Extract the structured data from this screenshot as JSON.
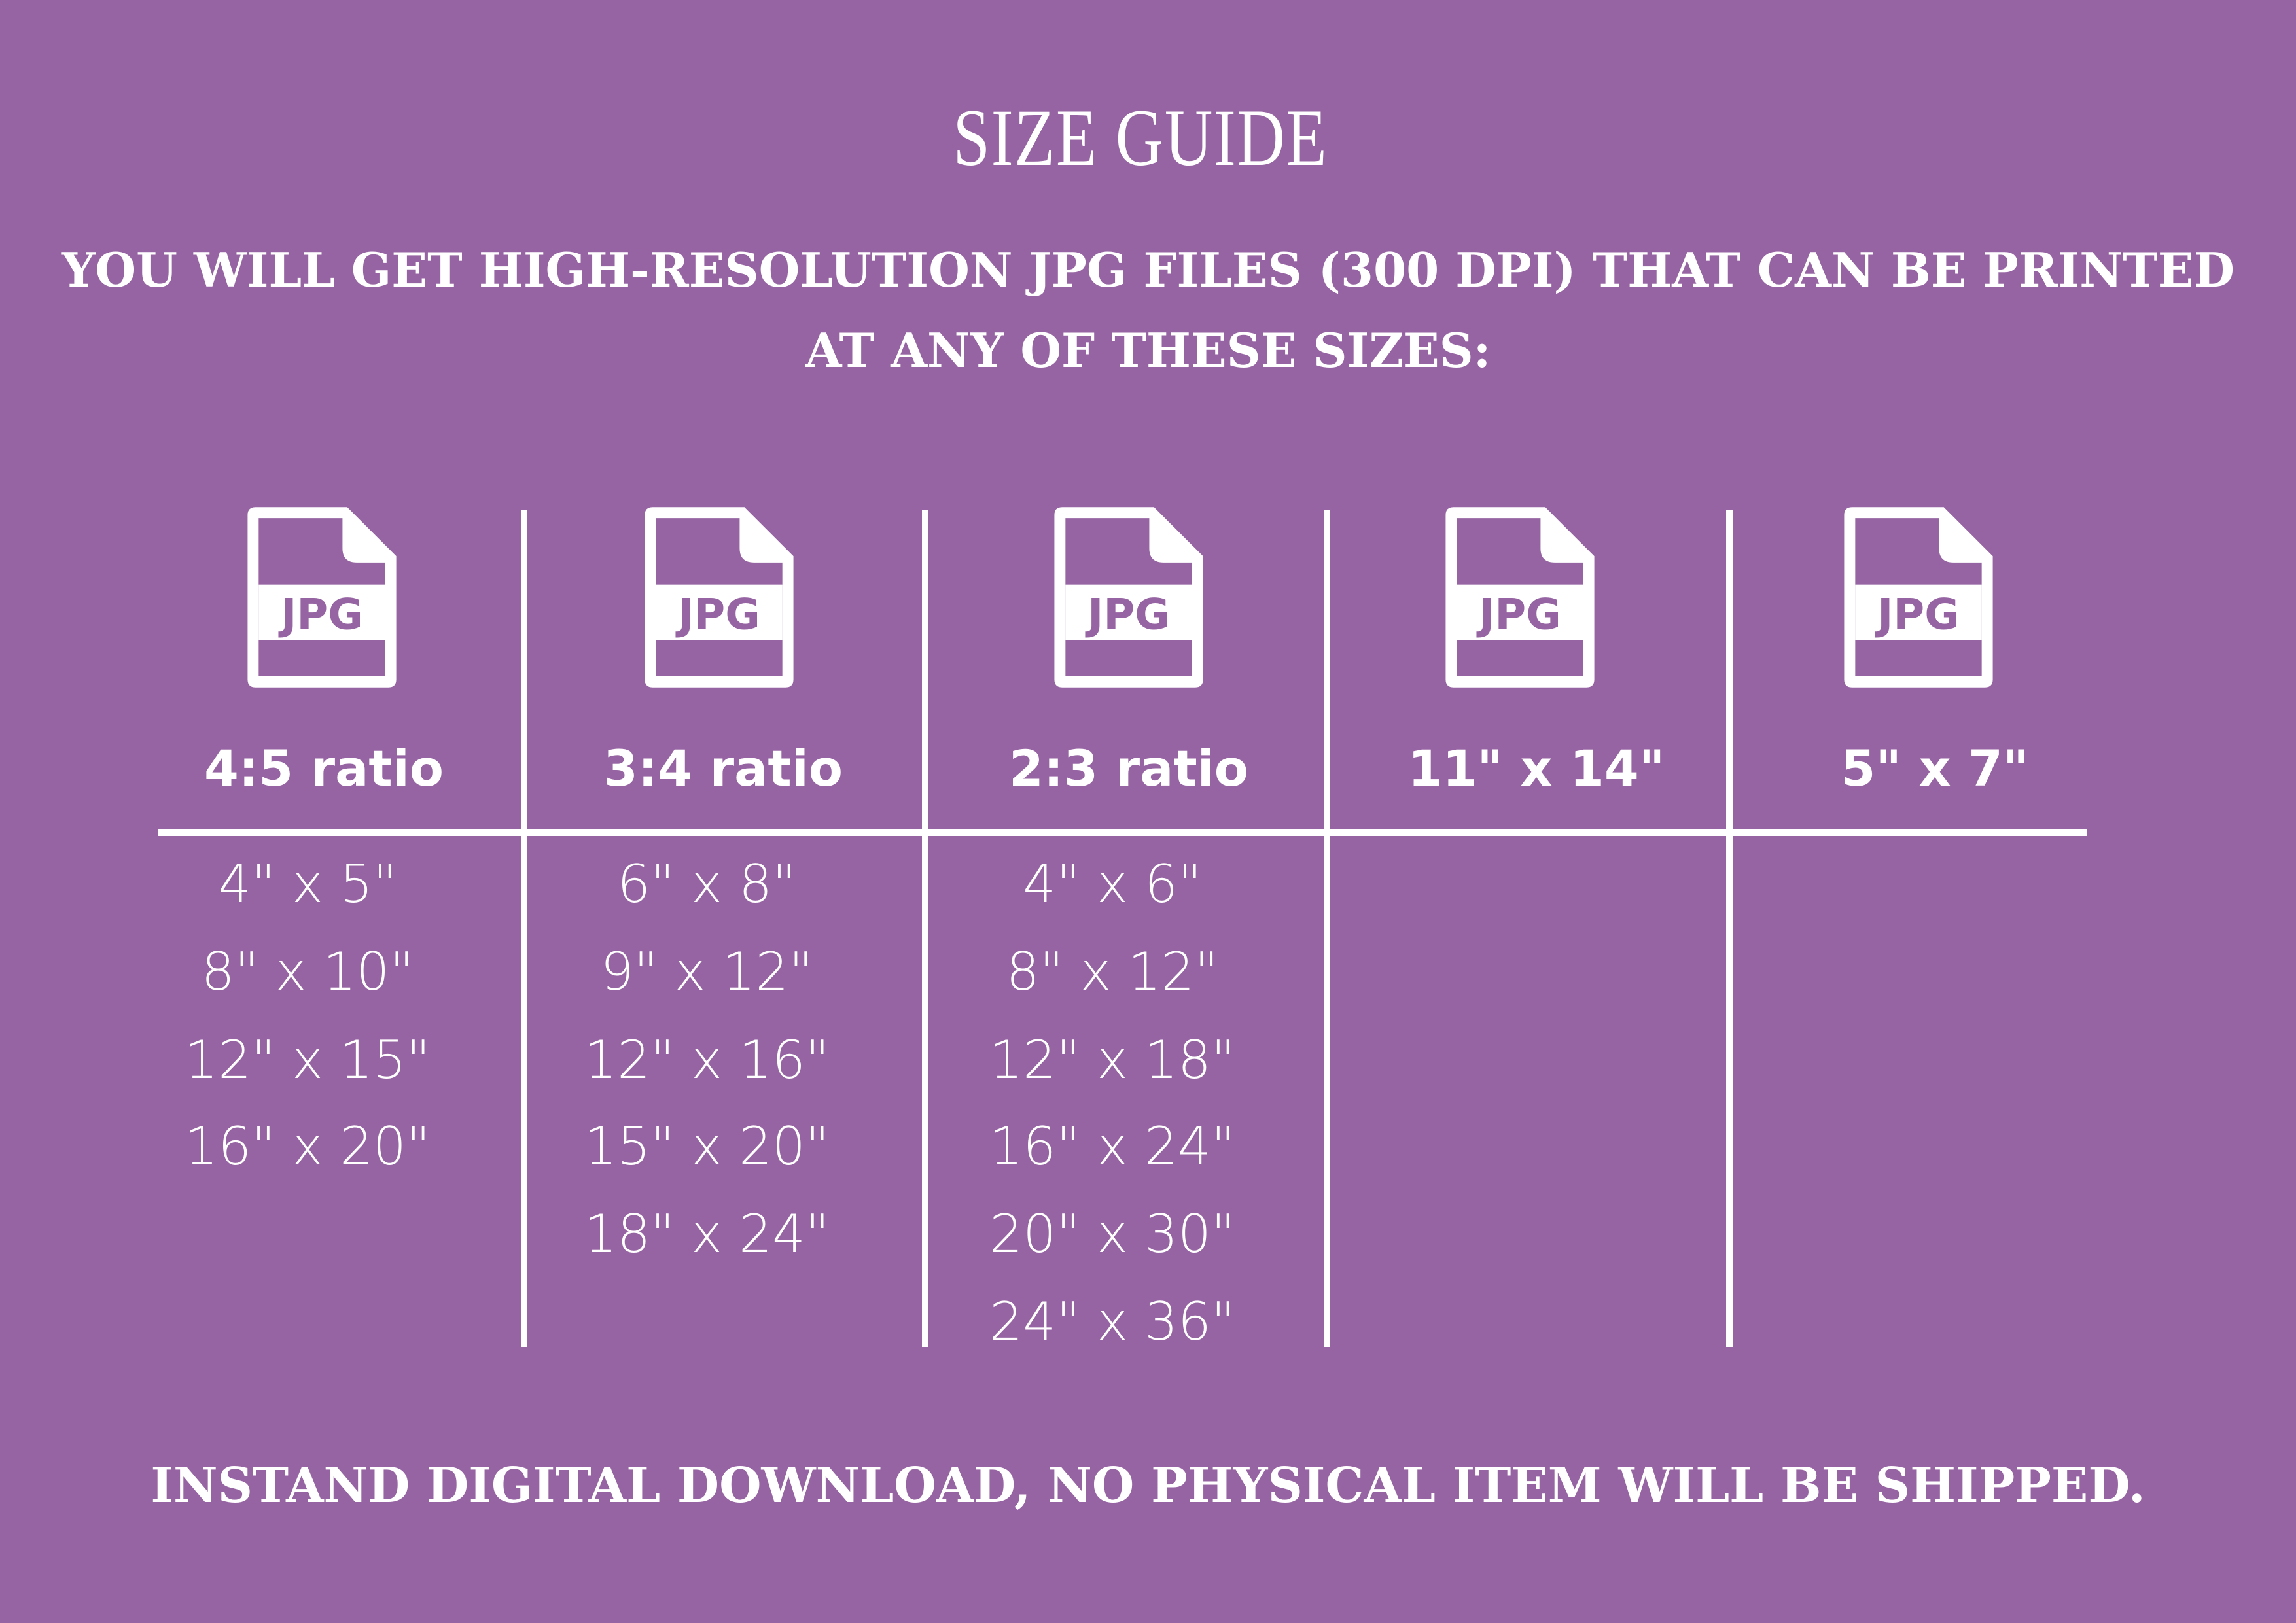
{
  "background_color": "#9664a2",
  "title": "SIZE GUIDE",
  "subtitle_lines": [
    "YOU WILL GET HIGH-RESOLUTION JPG FILES (300 DPI) THAT CAN BE PRINTED",
    "AT ANY OF THESE SIZES:"
  ],
  "columns": [
    {
      "icon": "jpg-file-icon",
      "icon_label": "JPG",
      "header": "4:5 ratio",
      "sizes": [
        "4\" x 5\"",
        "8\" x 10\"",
        "12\" x 15\"",
        "16\" x 20\""
      ]
    },
    {
      "icon": "jpg-file-icon",
      "icon_label": "JPG",
      "header": "3:4 ratio",
      "sizes": [
        "6\" x 8\"",
        "9\" x 12\"",
        "12\" x 16\"",
        "15\" x 20\"",
        "18\" x 24\""
      ]
    },
    {
      "icon": "jpg-file-icon",
      "icon_label": "JPG",
      "header": "2:3 ratio",
      "sizes": [
        "4\" x 6\"",
        "8\" x 12\"",
        "12\" x 18\"",
        "16\" x 24\"",
        "20\" x 30\"",
        "24\" x 36\""
      ]
    },
    {
      "icon": "jpg-file-icon",
      "icon_label": "JPG",
      "header": "11\" x 14\"",
      "sizes": []
    },
    {
      "icon": "jpg-file-icon",
      "icon_label": "JPG",
      "header": "5\" x 7\"",
      "sizes": []
    }
  ],
  "footer": "INSTAND DIGITAL DOWNLOAD, NO PHYSICAL ITEM WILL BE SHIPPED."
}
